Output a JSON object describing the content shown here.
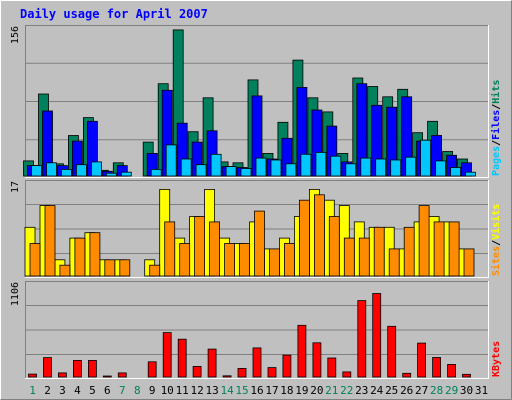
{
  "chart_data": {
    "type": "bar",
    "title": "Daily usage for April 2007",
    "categories": [
      "1",
      "2",
      "3",
      "4",
      "5",
      "6",
      "7",
      "8",
      "9",
      "10",
      "11",
      "12",
      "13",
      "14",
      "15",
      "16",
      "17",
      "18",
      "19",
      "20",
      "21",
      "22",
      "23",
      "24",
      "25",
      "26",
      "27",
      "28",
      "29",
      "30",
      "31"
    ],
    "weekend_days": [
      1,
      7,
      8,
      14,
      15,
      21,
      22,
      28,
      29
    ],
    "panels": [
      {
        "id": "hits-files-pages",
        "ylabel_parts": [
          "Pages",
          "Files",
          "Hits"
        ],
        "ymax_label": "156",
        "ylim": [
          0,
          156
        ],
        "series": [
          {
            "name": "Hits",
            "color": "#00805c",
            "values": [
              16,
              87,
              13,
              43,
              62,
              6,
              14,
              0,
              36,
              98,
              155,
              47,
              83,
              15,
              14,
              102,
              24,
              57,
              123,
              83,
              68,
              24,
              104,
              95,
              84,
              92,
              46,
              58,
              26,
              18,
              0
            ]
          },
          {
            "name": "Files",
            "color": "#0000ff",
            "values": [
              11,
              69,
              11,
              37,
              58,
              5,
              11,
              0,
              24,
              91,
              56,
              36,
              48,
              10,
              9,
              85,
              18,
              40,
              94,
              70,
              53,
              15,
              98,
              75,
              73,
              84,
              37,
              43,
              22,
              14,
              0
            ]
          },
          {
            "name": "Pages",
            "color": "#00c8ff",
            "values": [
              11,
              14,
              7,
              12,
              15,
              3,
              4,
              0,
              7,
              33,
              18,
              12,
              23,
              10,
              8,
              19,
              17,
              13,
              23,
              25,
              21,
              13,
              19,
              18,
              17,
              20,
              38,
              16,
              9,
              4,
              0
            ]
          }
        ]
      },
      {
        "id": "visits-sites",
        "ylabel_parts": [
          "Sites",
          "Visits"
        ],
        "ymax_label": "17",
        "ylim": [
          0,
          17
        ],
        "series": [
          {
            "name": "Visits",
            "color": "#ffff00",
            "values": [
              9,
              13,
              3,
              7,
              8,
              3,
              3,
              0,
              3,
              16,
              7,
              11,
              16,
              7,
              6,
              10,
              5,
              7,
              11,
              16,
              14,
              13,
              10,
              9,
              9,
              5,
              10,
              11,
              10,
              5,
              0
            ]
          },
          {
            "name": "Sites",
            "color": "#ff8c00",
            "values": [
              6,
              13,
              2,
              7,
              8,
              3,
              3,
              0,
              2,
              10,
              6,
              11,
              10,
              6,
              6,
              12,
              5,
              6,
              14,
              15,
              11,
              7,
              7,
              9,
              5,
              9,
              13,
              10,
              10,
              5,
              0
            ]
          }
        ]
      },
      {
        "id": "kbytes",
        "ylabel_parts": [
          "KBytes"
        ],
        "ymax_label": "1106",
        "ylim": [
          0,
          1106
        ],
        "series": [
          {
            "name": "KBytes",
            "color": "#ff0000",
            "values": [
              35,
              233,
              49,
              200,
              200,
              10,
              49,
              0,
              183,
              534,
              454,
              128,
              336,
              15,
              103,
              350,
              113,
              263,
              621,
              411,
              229,
              61,
              918,
              1004,
              610,
              44,
              408,
              234,
              151,
              32,
              0
            ]
          }
        ]
      }
    ],
    "colors": {
      "background": "#c0c0c0",
      "title": "#0000ff",
      "weekday_label": "#000000",
      "weekend_label": "#00805c",
      "gridline": "#808080"
    }
  }
}
